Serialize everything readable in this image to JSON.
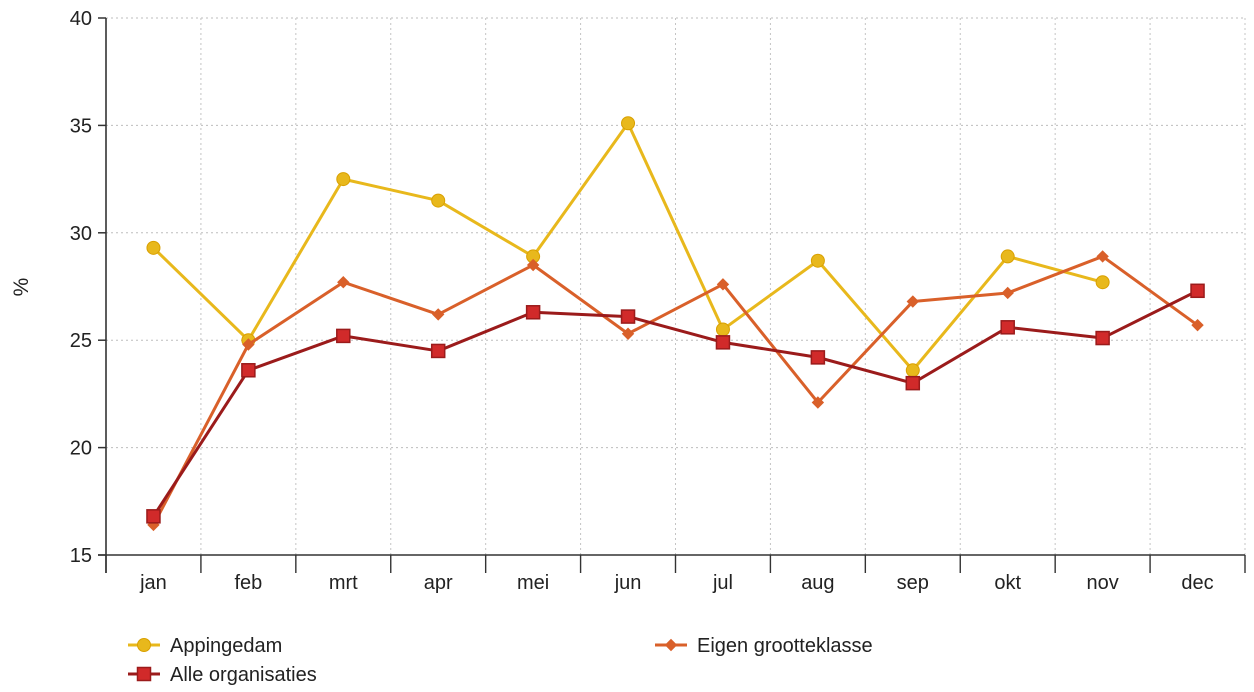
{
  "chart_data": {
    "type": "line",
    "title": "",
    "xlabel": "",
    "ylabel": "%",
    "ylim": [
      15,
      40
    ],
    "yticks": [
      15,
      20,
      25,
      30,
      35,
      40
    ],
    "categories": [
      "jan",
      "feb",
      "mrt",
      "apr",
      "mei",
      "jun",
      "jul",
      "aug",
      "sep",
      "okt",
      "nov",
      "dec"
    ],
    "grid": "dotted",
    "legend_position": "bottom",
    "series": [
      {
        "name": "Appingedam",
        "color": "#e8b81c",
        "marker": "circle",
        "values": [
          29.3,
          25.0,
          32.5,
          31.5,
          28.9,
          35.1,
          25.5,
          28.7,
          23.6,
          28.9,
          27.7,
          null
        ]
      },
      {
        "name": "Eigen grootteklasse",
        "color": "#d9602a",
        "marker": "diamond",
        "values": [
          16.4,
          24.8,
          27.7,
          26.2,
          28.5,
          25.3,
          27.6,
          22.1,
          26.8,
          27.2,
          28.9,
          25.7
        ]
      },
      {
        "name": "Alle organisaties",
        "color": "#9b1b1b",
        "markerFill": "#d12a2a",
        "marker": "square",
        "values": [
          16.8,
          23.6,
          25.2,
          24.5,
          26.3,
          26.1,
          24.9,
          24.2,
          23.0,
          25.6,
          25.1,
          27.3
        ]
      }
    ]
  }
}
